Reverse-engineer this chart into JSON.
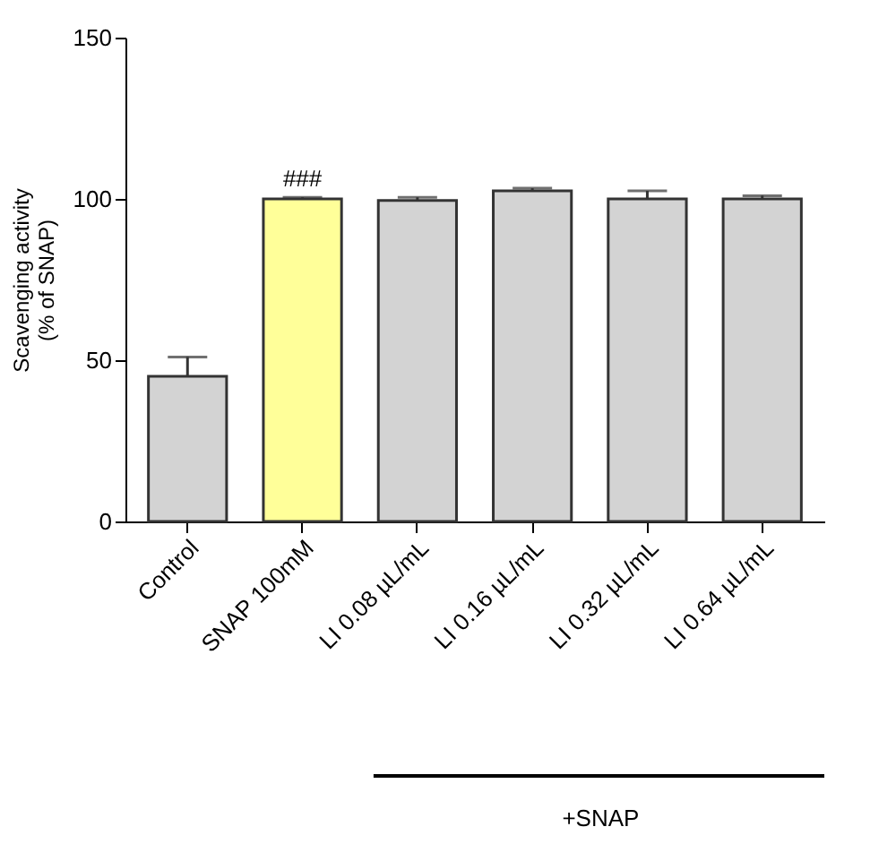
{
  "chart_data": {
    "type": "bar",
    "ylabel": "Scavenging activity\n(% of SNAP)",
    "categories": [
      "Control",
      "SNAP 100mM",
      "LI 0.08 µL/mL",
      "LI 0.16 µL/mL",
      "LI 0.32 µL/mL",
      "LI 0.64 µL/mL"
    ],
    "values": [
      45,
      100,
      99.5,
      102.5,
      100,
      100
    ],
    "errors": [
      [
        45,
        51
      ],
      [
        100,
        100.5
      ],
      [
        99.5,
        100.5
      ],
      [
        102.5,
        103.3
      ],
      [
        100,
        102.5
      ],
      [
        100,
        101
      ]
    ],
    "colors": [
      "#d3d3d3",
      "#ffff99",
      "#d3d3d3",
      "#d3d3d3",
      "#d3d3d3",
      "#d3d3d3"
    ],
    "ylim": [
      0,
      150
    ],
    "yticks": [
      0,
      50,
      100,
      150
    ],
    "grid": false,
    "annotations": [
      {
        "text": "###",
        "x": "SNAP 100mM",
        "y": 100.5
      },
      "+SNAP"
    ]
  }
}
